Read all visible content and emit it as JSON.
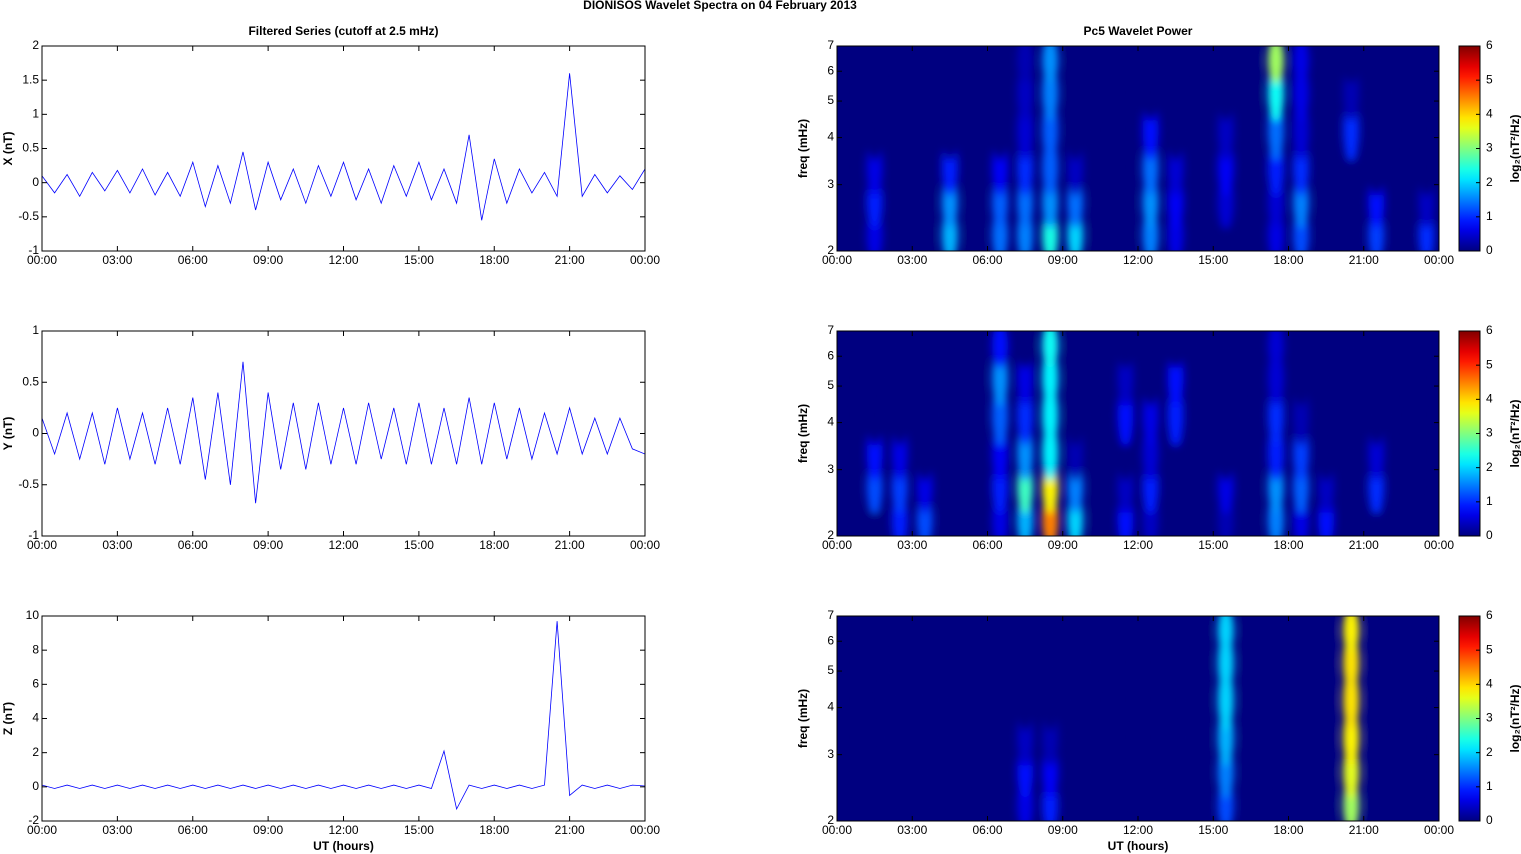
{
  "title": "DIONISOS Wavelet Spectra on 04 February  2013",
  "chart_data": [
    {
      "type": "line",
      "title": "Filtered Series (cutoff at 2.5 mHz)",
      "y_label": "X (nT)",
      "color": "#0000ff",
      "x": [
        0,
        0.5,
        1,
        1.5,
        2,
        2.5,
        3,
        3.5,
        4,
        4.5,
        5,
        5.5,
        6,
        6.5,
        7,
        7.5,
        8,
        8.5,
        9,
        9.5,
        10,
        10.5,
        11,
        11.5,
        12,
        12.5,
        13,
        13.5,
        14,
        14.5,
        15,
        15.5,
        16,
        16.5,
        17,
        17.5,
        18,
        18.5,
        19,
        19.5,
        20,
        20.5,
        21,
        21.5,
        22,
        22.5,
        23,
        23.5,
        24
      ],
      "values": [
        0.1,
        -0.15,
        0.12,
        -0.2,
        0.15,
        -0.12,
        0.18,
        -0.15,
        0.2,
        -0.18,
        0.15,
        -0.2,
        0.3,
        -0.35,
        0.25,
        -0.3,
        0.45,
        -0.4,
        0.3,
        -0.25,
        0.2,
        -0.3,
        0.25,
        -0.2,
        0.3,
        -0.25,
        0.2,
        -0.3,
        0.25,
        -0.2,
        0.3,
        -0.25,
        0.2,
        -0.3,
        0.7,
        -0.55,
        0.35,
        -0.3,
        0.2,
        -0.15,
        0.15,
        -0.2,
        1.6,
        -0.2,
        0.12,
        -0.15,
        0.1,
        -0.1,
        0.2
      ],
      "xlim": [
        0,
        24
      ],
      "xticks": [
        {
          "value": 0,
          "label": "00:00"
        },
        {
          "value": 3,
          "label": "03:00"
        },
        {
          "value": 6,
          "label": "06:00"
        },
        {
          "value": 9,
          "label": "09:00"
        },
        {
          "value": 12,
          "label": "12:00"
        },
        {
          "value": 15,
          "label": "15:00"
        },
        {
          "value": 18,
          "label": "18:00"
        },
        {
          "value": 21,
          "label": "21:00"
        },
        {
          "value": 24,
          "label": "00:00"
        }
      ],
      "ylim": [
        -1,
        2
      ],
      "yticks": [
        -1,
        -0.5,
        0,
        0.5,
        1,
        1.5,
        2
      ]
    },
    {
      "type": "heatmap",
      "title": "Pc5 Wavelet Power",
      "y_label": "freq (mHz)",
      "colormap": "jet",
      "log_y": true,
      "x": [
        0.5,
        1.5,
        2.5,
        3.5,
        4.5,
        5.5,
        6.5,
        7.5,
        8.5,
        9.5,
        10.5,
        11.5,
        12.5,
        13.5,
        14.5,
        15.5,
        16.5,
        17.5,
        18.5,
        19.5,
        20.5,
        21.5,
        22.5,
        23.5
      ],
      "y": [
        2.2,
        2.7,
        3.3,
        4.2,
        5.3,
        6.5
      ],
      "z": [
        [
          0,
          0.6,
          0,
          0,
          1.8,
          0,
          1.4,
          1.5,
          2.4,
          2.0,
          0,
          0,
          1.5,
          0.6,
          0,
          0,
          0,
          0.6,
          1.2,
          0,
          0,
          1.1,
          0,
          1.0
        ],
        [
          0,
          0.9,
          0,
          0,
          1.6,
          0,
          1.3,
          1.4,
          1.6,
          1.4,
          0,
          0,
          1.6,
          0.7,
          0,
          0.5,
          0,
          0.5,
          1.5,
          0,
          0,
          0.8,
          0,
          0.4
        ],
        [
          0,
          0.6,
          0,
          0,
          0.9,
          0,
          0.7,
          1.0,
          1.3,
          0.4,
          0,
          0,
          1.4,
          0.5,
          0,
          0.7,
          0,
          0.9,
          1.0,
          0,
          0,
          0,
          0,
          0
        ],
        [
          0,
          0,
          0,
          0,
          0,
          0,
          0,
          0.5,
          1.3,
          0,
          0,
          0,
          0.8,
          0,
          0,
          0.4,
          0,
          1.4,
          0.5,
          0,
          1.0,
          0,
          0,
          0
        ],
        [
          0,
          0,
          0,
          0,
          0,
          0,
          0,
          0.4,
          1.5,
          0,
          0,
          0,
          0,
          0,
          0,
          0,
          0,
          2.3,
          0.6,
          0,
          0.3,
          0,
          0,
          0
        ],
        [
          0,
          0,
          0,
          0,
          0,
          0,
          0,
          0.3,
          1.6,
          0,
          0,
          0,
          0,
          0,
          0,
          0,
          0,
          3.2,
          0.6,
          0,
          0,
          0,
          0,
          0
        ]
      ],
      "xlim": [
        0,
        24
      ],
      "xticks": [
        {
          "value": 0,
          "label": "00:00"
        },
        {
          "value": 3,
          "label": "03:00"
        },
        {
          "value": 6,
          "label": "06:00"
        },
        {
          "value": 9,
          "label": "09:00"
        },
        {
          "value": 12,
          "label": "12:00"
        },
        {
          "value": 15,
          "label": "15:00"
        },
        {
          "value": 18,
          "label": "18:00"
        },
        {
          "value": 21,
          "label": "21:00"
        },
        {
          "value": 24,
          "label": "00:00"
        }
      ],
      "ylim": [
        2,
        7
      ],
      "yticks": [
        2,
        3,
        4,
        5,
        6,
        7
      ],
      "zlim": [
        0,
        6
      ],
      "zticks": [
        0,
        1,
        2,
        3,
        4,
        5,
        6
      ],
      "colorbar_label": "log₂(nT²/Hz)"
    },
    {
      "type": "line",
      "y_label": "Y (nT)",
      "color": "#0000ff",
      "x": [
        0,
        0.5,
        1,
        1.5,
        2,
        2.5,
        3,
        3.5,
        4,
        4.5,
        5,
        5.5,
        6,
        6.5,
        7,
        7.5,
        8,
        8.5,
        9,
        9.5,
        10,
        10.5,
        11,
        11.5,
        12,
        12.5,
        13,
        13.5,
        14,
        14.5,
        15,
        15.5,
        16,
        16.5,
        17,
        17.5,
        18,
        18.5,
        19,
        19.5,
        20,
        20.5,
        21,
        21.5,
        22,
        22.5,
        23,
        23.5,
        24
      ],
      "values": [
        0.15,
        -0.2,
        0.2,
        -0.25,
        0.2,
        -0.3,
        0.25,
        -0.25,
        0.2,
        -0.3,
        0.25,
        -0.3,
        0.35,
        -0.45,
        0.4,
        -0.5,
        0.7,
        -0.68,
        0.4,
        -0.35,
        0.3,
        -0.35,
        0.3,
        -0.3,
        0.25,
        -0.3,
        0.3,
        -0.25,
        0.25,
        -0.3,
        0.3,
        -0.3,
        0.25,
        -0.3,
        0.35,
        -0.3,
        0.3,
        -0.25,
        0.25,
        -0.25,
        0.2,
        -0.2,
        0.25,
        -0.2,
        0.15,
        -0.2,
        0.15,
        -0.15,
        -0.2
      ],
      "xlim": [
        0,
        24
      ],
      "xticks": [
        {
          "value": 0,
          "label": "00:00"
        },
        {
          "value": 3,
          "label": "03:00"
        },
        {
          "value": 6,
          "label": "06:00"
        },
        {
          "value": 9,
          "label": "09:00"
        },
        {
          "value": 12,
          "label": "12:00"
        },
        {
          "value": 15,
          "label": "15:00"
        },
        {
          "value": 18,
          "label": "18:00"
        },
        {
          "value": 21,
          "label": "21:00"
        },
        {
          "value": 24,
          "label": "00:00"
        }
      ],
      "ylim": [
        -1,
        1
      ],
      "yticks": [
        -1,
        -0.5,
        0,
        0.5,
        1
      ]
    },
    {
      "type": "heatmap",
      "y_label": "freq (mHz)",
      "colormap": "jet",
      "log_y": true,
      "x": [
        0.5,
        1.5,
        2.5,
        3.5,
        4.5,
        5.5,
        6.5,
        7.5,
        8.5,
        9.5,
        10.5,
        11.5,
        12.5,
        13.5,
        14.5,
        15.5,
        16.5,
        17.5,
        18.5,
        19.5,
        20.5,
        21.5,
        22.5,
        23.5
      ],
      "y": [
        2.2,
        2.7,
        3.3,
        4.2,
        5.3,
        6.5
      ],
      "z": [
        [
          0,
          0,
          0.9,
          1.2,
          0,
          0,
          0.6,
          1.8,
          4.5,
          2.0,
          0,
          0.8,
          0.4,
          0,
          0,
          0.3,
          0,
          1.5,
          0.6,
          0.8,
          0,
          0,
          0,
          0
        ],
        [
          0,
          1.2,
          1.1,
          0.6,
          0,
          0,
          0.9,
          2.6,
          3.8,
          1.5,
          0,
          0.4,
          0.9,
          0,
          0,
          0.6,
          0,
          1.6,
          1.3,
          0.4,
          0,
          1.0,
          0,
          0
        ],
        [
          0,
          0.8,
          0.6,
          0,
          0,
          0,
          0.7,
          1.6,
          2.2,
          0.3,
          0,
          0,
          0.5,
          0,
          0,
          0,
          0,
          0.9,
          1.1,
          0,
          0,
          0.5,
          0,
          0
        ],
        [
          0,
          0,
          0,
          0,
          0,
          0,
          1.3,
          1.0,
          2.2,
          0,
          0,
          0.8,
          0.6,
          0.9,
          0,
          0,
          0,
          1.0,
          0.3,
          0,
          0,
          0,
          0,
          0
        ],
        [
          0,
          0,
          0,
          0,
          0,
          0,
          1.6,
          0.6,
          2.2,
          0,
          0,
          0.4,
          0,
          0.8,
          0,
          0,
          0,
          0.5,
          0,
          0,
          0,
          0,
          0,
          0
        ],
        [
          0,
          0,
          0,
          0,
          0,
          0,
          0.8,
          0,
          2.3,
          0,
          0,
          0,
          0,
          0,
          0,
          0,
          0,
          0.5,
          0,
          0,
          0,
          0,
          0,
          0
        ]
      ],
      "xlim": [
        0,
        24
      ],
      "xticks": [
        {
          "value": 0,
          "label": "00:00"
        },
        {
          "value": 3,
          "label": "03:00"
        },
        {
          "value": 6,
          "label": "06:00"
        },
        {
          "value": 9,
          "label": "09:00"
        },
        {
          "value": 12,
          "label": "12:00"
        },
        {
          "value": 15,
          "label": "15:00"
        },
        {
          "value": 18,
          "label": "18:00"
        },
        {
          "value": 21,
          "label": "21:00"
        },
        {
          "value": 24,
          "label": "00:00"
        }
      ],
      "ylim": [
        2,
        7
      ],
      "yticks": [
        2,
        3,
        4,
        5,
        6,
        7
      ],
      "zlim": [
        0,
        6
      ],
      "zticks": [
        0,
        1,
        2,
        3,
        4,
        5,
        6
      ],
      "colorbar_label": "log₂(nT²/Hz)"
    },
    {
      "type": "line",
      "y_label": "Z (nT)",
      "x_label": "UT (hours)",
      "color": "#0000ff",
      "x": [
        0,
        0.5,
        1,
        1.5,
        2,
        2.5,
        3,
        3.5,
        4,
        4.5,
        5,
        5.5,
        6,
        6.5,
        7,
        7.5,
        8,
        8.5,
        9,
        9.5,
        10,
        10.5,
        11,
        11.5,
        12,
        12.5,
        13,
        13.5,
        14,
        14.5,
        15,
        15.5,
        16,
        16.5,
        17,
        17.5,
        18,
        18.5,
        19,
        19.5,
        20,
        20.5,
        21,
        21.5,
        22,
        22.5,
        23,
        23.5,
        24
      ],
      "values": [
        0.1,
        -0.1,
        0.1,
        -0.1,
        0.1,
        -0.1,
        0.1,
        -0.1,
        0.1,
        -0.1,
        0.1,
        -0.1,
        0.1,
        -0.1,
        0.1,
        -0.1,
        0.1,
        -0.1,
        0.1,
        -0.1,
        0.1,
        -0.1,
        0.1,
        -0.1,
        0.1,
        -0.1,
        0.1,
        -0.1,
        0.1,
        -0.1,
        0.1,
        -0.1,
        2.1,
        -1.3,
        0.1,
        -0.1,
        0.1,
        -0.1,
        0.1,
        -0.1,
        0.1,
        9.7,
        -0.5,
        0.1,
        -0.1,
        0.1,
        -0.1,
        0.1,
        0.05
      ],
      "xlim": [
        0,
        24
      ],
      "xticks": [
        {
          "value": 0,
          "label": "00:00"
        },
        {
          "value": 3,
          "label": "03:00"
        },
        {
          "value": 6,
          "label": "06:00"
        },
        {
          "value": 9,
          "label": "09:00"
        },
        {
          "value": 12,
          "label": "12:00"
        },
        {
          "value": 15,
          "label": "15:00"
        },
        {
          "value": 18,
          "label": "18:00"
        },
        {
          "value": 21,
          "label": "21:00"
        },
        {
          "value": 24,
          "label": "00:00"
        }
      ],
      "ylim": [
        -2,
        10
      ],
      "yticks": [
        -2,
        0,
        2,
        4,
        6,
        8,
        10
      ]
    },
    {
      "type": "heatmap",
      "y_label": "freq (mHz)",
      "x_label": "UT (hours)",
      "colormap": "jet",
      "log_y": true,
      "x": [
        0.5,
        1.5,
        2.5,
        3.5,
        4.5,
        5.5,
        6.5,
        7.5,
        8.5,
        9.5,
        10.5,
        11.5,
        12.5,
        13.5,
        14.5,
        15.5,
        16.5,
        17.5,
        18.5,
        19.5,
        20.5,
        21.5,
        22.5,
        23.5
      ],
      "y": [
        2.2,
        2.7,
        3.3,
        4.2,
        5.3,
        6.5
      ],
      "z": [
        [
          0,
          0,
          0,
          0,
          0,
          0,
          0,
          0.6,
          0.9,
          0,
          0,
          0,
          0,
          0,
          0,
          1.2,
          0,
          0,
          0,
          0,
          3.2,
          0,
          0,
          0
        ],
        [
          0,
          0,
          0,
          0,
          0,
          0,
          0,
          0.8,
          0.7,
          0,
          0,
          0,
          0,
          0,
          0,
          1.5,
          0,
          0,
          0,
          0,
          3.6,
          0,
          0,
          0
        ],
        [
          0,
          0,
          0,
          0,
          0,
          0,
          0,
          0.4,
          0.3,
          0,
          0,
          0,
          0,
          0,
          0,
          1.8,
          0,
          0,
          0,
          0,
          3.8,
          0,
          0,
          0
        ],
        [
          0,
          0,
          0,
          0,
          0,
          0,
          0,
          0,
          0,
          0,
          0,
          0,
          0,
          0,
          0,
          2.0,
          0,
          0,
          0,
          0,
          3.9,
          0,
          0,
          0
        ],
        [
          0,
          0,
          0,
          0,
          0,
          0,
          0,
          0,
          0,
          0,
          0,
          0,
          0,
          0,
          0,
          2.0,
          0,
          0,
          0,
          0,
          3.9,
          0,
          0,
          0
        ],
        [
          0,
          0,
          0,
          0,
          0,
          0,
          0,
          0,
          0,
          0,
          0,
          0,
          0,
          0,
          0,
          2.0,
          0,
          0,
          0,
          0,
          3.8,
          0,
          0,
          0
        ]
      ],
      "xlim": [
        0,
        24
      ],
      "xticks": [
        {
          "value": 0,
          "label": "00:00"
        },
        {
          "value": 3,
          "label": "03:00"
        },
        {
          "value": 6,
          "label": "06:00"
        },
        {
          "value": 9,
          "label": "09:00"
        },
        {
          "value": 12,
          "label": "12:00"
        },
        {
          "value": 15,
          "label": "15:00"
        },
        {
          "value": 18,
          "label": "18:00"
        },
        {
          "value": 21,
          "label": "21:00"
        },
        {
          "value": 24,
          "label": "00:00"
        }
      ],
      "ylim": [
        2,
        7
      ],
      "yticks": [
        2,
        3,
        4,
        5,
        6,
        7
      ],
      "zlim": [
        0,
        6
      ],
      "zticks": [
        0,
        1,
        2,
        3,
        4,
        5,
        6
      ],
      "colorbar_label": "log₂(nT²/Hz)"
    }
  ]
}
